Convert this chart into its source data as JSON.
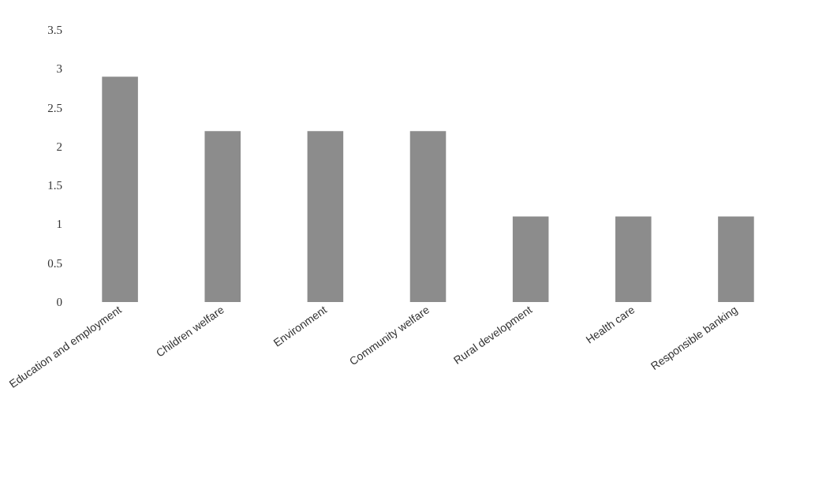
{
  "chart_data": {
    "type": "bar",
    "categories": [
      "Education and employment",
      "Children welfare",
      "Environment",
      "Community welfare",
      "Rural development",
      "Health care",
      "Responsible banking"
    ],
    "values": [
      2.9,
      2.2,
      2.2,
      2.2,
      1.1,
      1.1,
      1.1
    ],
    "color": "#8c8c8c",
    "ylim": [
      0,
      3.5
    ],
    "yticks": [
      0,
      0.5,
      1,
      1.5,
      2,
      2.5,
      3,
      3.5
    ],
    "grid": false
  }
}
